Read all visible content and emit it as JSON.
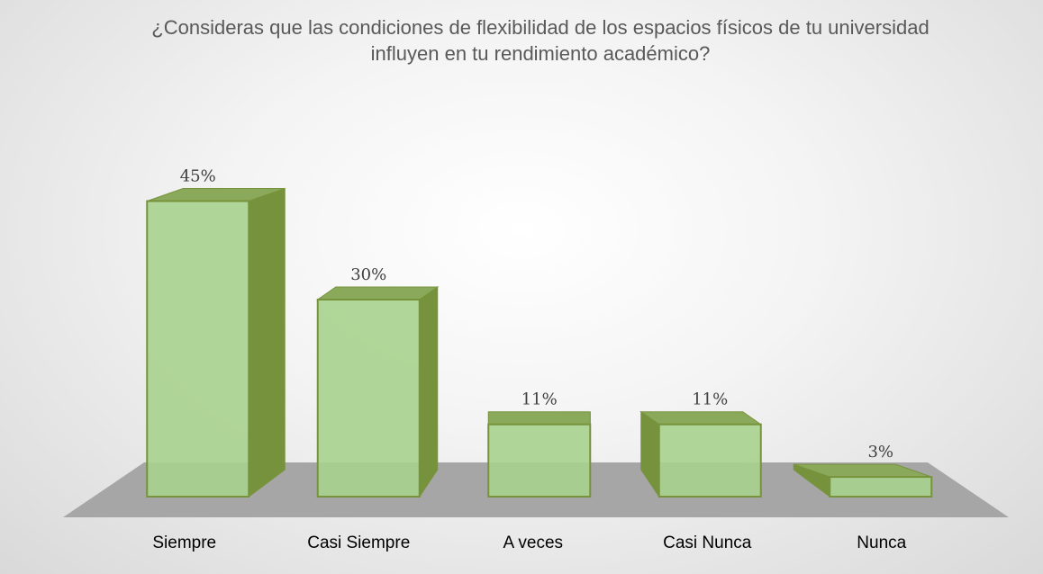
{
  "chart_data": {
    "type": "bar3d",
    "title": "¿Consideras que las condiciones de flexibilidad de los espacios físicos de tu universidad influyen en tu rendimiento académico?",
    "categories": [
      "Siempre",
      "Casi Siempre",
      "A veces",
      "Casi Nunca",
      "Nunca"
    ],
    "values": [
      45,
      30,
      11,
      11,
      3
    ],
    "value_labels": [
      "45%",
      "30%",
      "11%",
      "11%",
      "3%"
    ],
    "color": "#a9d18e"
  }
}
